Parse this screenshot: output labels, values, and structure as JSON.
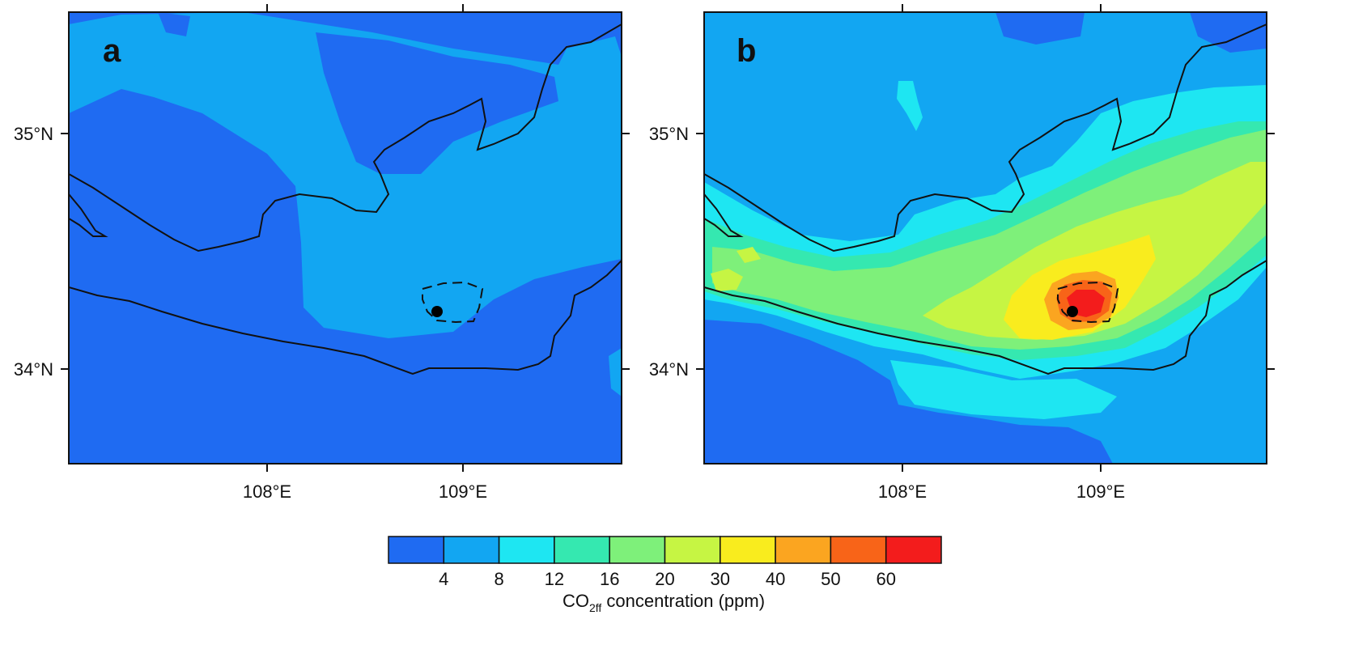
{
  "panels": [
    {
      "letter": "a",
      "x_ticks": [
        "108°E",
        "109°E"
      ],
      "y_ticks": [
        "35°N",
        "34°N"
      ]
    },
    {
      "letter": "b",
      "x_ticks": [
        "108°E",
        "109°E"
      ],
      "y_ticks": [
        "35°N",
        "34°N"
      ]
    }
  ],
  "colorbar": {
    "labels": [
      "4",
      "8",
      "12",
      "16",
      "20",
      "30",
      "40",
      "50",
      "60"
    ],
    "colors": [
      "#1f6bf2",
      "#12a6f2",
      "#1ee6f2",
      "#35e8b0",
      "#7ef07a",
      "#c6f543",
      "#f9ec1e",
      "#fba520",
      "#f86418",
      "#f31c1c"
    ],
    "title_prefix": "CO",
    "title_sub": "2ff",
    "title_suffix": " concentration (ppm)"
  },
  "chart_data": {
    "type": "heatmap",
    "title": "",
    "panels": [
      {
        "letter": "a",
        "description_of_field": "CO2ff concentration mostly 0–8 ppm; 4–8 ppm band over the plain"
      },
      {
        "letter": "b",
        "description_of_field": "CO2ff concentration up to >60 ppm near the marked site at about 108.9°E, 34.25°N"
      }
    ],
    "x_range": [
      107.1,
      109.8
    ],
    "y_range": [
      33.6,
      35.5
    ],
    "x_ticks": [
      108,
      109
    ],
    "y_ticks": [
      35,
      34
    ],
    "site": {
      "lon": 108.9,
      "lat": 34.25
    },
    "colorbar_bounds": [
      4,
      8,
      12,
      16,
      20,
      30,
      40,
      50,
      60
    ],
    "colorbar_label": "CO2ff concentration (ppm)"
  }
}
